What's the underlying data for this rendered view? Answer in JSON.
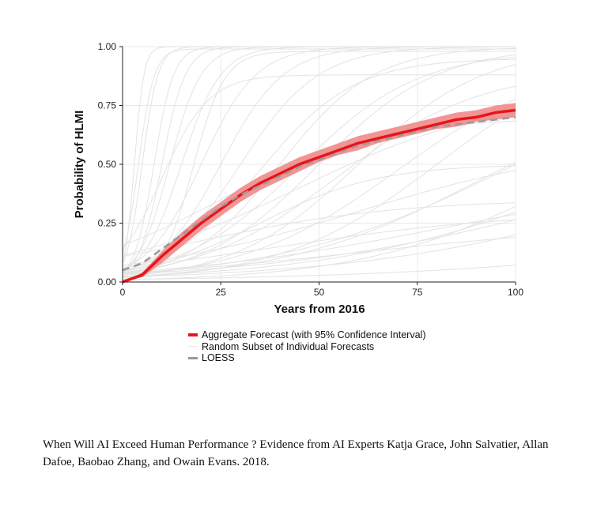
{
  "chart_data": {
    "type": "line",
    "xlabel": "Years from 2016",
    "ylabel": "Probability of HLMI",
    "xlim": [
      0,
      100
    ],
    "ylim": [
      0,
      1
    ],
    "xticks": [
      "0",
      "25",
      "50",
      "75",
      "100"
    ],
    "yticks": [
      "0.00",
      "0.25",
      "0.50",
      "0.75",
      "1.00"
    ],
    "grid": true,
    "legend_position": "bottom",
    "series": [
      {
        "name": "Aggregate Forecast (with 95% Confidence Interval)",
        "color": "#e8141a",
        "band_color": "#f08a8a",
        "x": [
          0,
          5,
          10,
          15,
          20,
          25,
          30,
          35,
          40,
          45,
          50,
          55,
          60,
          65,
          70,
          75,
          80,
          85,
          90,
          95,
          100
        ],
        "y": [
          0.0,
          0.03,
          0.11,
          0.18,
          0.25,
          0.31,
          0.37,
          0.42,
          0.46,
          0.5,
          0.53,
          0.56,
          0.59,
          0.61,
          0.63,
          0.65,
          0.67,
          0.69,
          0.7,
          0.72,
          0.73
        ],
        "lower": [
          0.0,
          0.02,
          0.08,
          0.15,
          0.22,
          0.28,
          0.34,
          0.39,
          0.43,
          0.47,
          0.51,
          0.54,
          0.56,
          0.59,
          0.61,
          0.63,
          0.65,
          0.66,
          0.68,
          0.69,
          0.7
        ],
        "upper": [
          0.0,
          0.04,
          0.13,
          0.21,
          0.28,
          0.34,
          0.4,
          0.45,
          0.49,
          0.53,
          0.56,
          0.59,
          0.62,
          0.64,
          0.66,
          0.68,
          0.7,
          0.72,
          0.73,
          0.75,
          0.76
        ]
      },
      {
        "name": "Random Subset of Individual Forecasts",
        "color": "#e3e3e3",
        "curves": [
          {
            "mid": 3,
            "scale": 1.2,
            "max": 1.0
          },
          {
            "mid": 5,
            "scale": 2,
            "max": 1.0
          },
          {
            "mid": 8,
            "scale": 2.5,
            "max": 1.0
          },
          {
            "mid": 10,
            "scale": 3,
            "max": 1.0
          },
          {
            "mid": 12,
            "scale": 4,
            "max": 1.0
          },
          {
            "mid": 15,
            "scale": 5,
            "max": 1.0
          },
          {
            "mid": 18,
            "scale": 4,
            "max": 0.98
          },
          {
            "mid": 20,
            "scale": 7,
            "max": 1.0
          },
          {
            "mid": 25,
            "scale": 8,
            "max": 1.0
          },
          {
            "mid": 30,
            "scale": 10,
            "max": 1.0
          },
          {
            "mid": 35,
            "scale": 12,
            "max": 0.95
          },
          {
            "mid": 40,
            "scale": 12,
            "max": 1.0
          },
          {
            "mid": 45,
            "scale": 15,
            "max": 0.98
          },
          {
            "mid": 50,
            "scale": 15,
            "max": 1.0
          },
          {
            "mid": 55,
            "scale": 18,
            "max": 0.9
          },
          {
            "mid": 60,
            "scale": 16,
            "max": 1.0
          },
          {
            "mid": 70,
            "scale": 20,
            "max": 0.95
          },
          {
            "mid": 80,
            "scale": 20,
            "max": 1.0
          },
          {
            "mid": 90,
            "scale": 25,
            "max": 0.85
          },
          {
            "mid": 100,
            "scale": 30,
            "max": 1.0
          },
          {
            "mid": 110,
            "scale": 25,
            "max": 0.8
          },
          {
            "mid": 130,
            "scale": 35,
            "max": 1.0
          },
          {
            "mid": 150,
            "scale": 40,
            "max": 0.9
          },
          {
            "mid": 200,
            "scale": 50,
            "max": 0.6
          },
          {
            "mid": 20,
            "scale": 25,
            "max": 0.35
          },
          {
            "mid": 40,
            "scale": 30,
            "max": 0.3
          },
          {
            "mid": 60,
            "scale": 35,
            "max": 0.25
          },
          {
            "mid": 35,
            "scale": 15,
            "max": 0.5
          },
          {
            "mid": 10,
            "scale": 6,
            "max": 0.88
          },
          {
            "mid": 25,
            "scale": 20,
            "max": 0.7
          },
          {
            "mid": 60,
            "scale": 30,
            "max": 0.6
          },
          {
            "mid": 80,
            "scale": 35,
            "max": 0.45
          },
          {
            "mid": 4,
            "scale": 2,
            "max": 0.99
          },
          {
            "mid": 45,
            "scale": 25,
            "max": 0.8
          },
          {
            "mid": 120,
            "scale": 40,
            "max": 0.7
          }
        ]
      },
      {
        "name": "LOESS",
        "color": "#9a9a9a",
        "x": [
          0,
          5,
          10,
          15,
          20,
          25,
          30,
          35,
          40,
          45,
          50,
          55,
          60,
          65,
          70,
          75,
          80,
          85,
          90,
          95,
          100
        ],
        "y": [
          0.05,
          0.08,
          0.14,
          0.2,
          0.26,
          0.32,
          0.37,
          0.41,
          0.45,
          0.49,
          0.52,
          0.55,
          0.58,
          0.6,
          0.62,
          0.64,
          0.66,
          0.67,
          0.68,
          0.69,
          0.7
        ]
      }
    ]
  },
  "caption": "When Will AI Exceed Human Performance ? Evidence from AI Experts Katja Grace, John Salvatier, Allan Dafoe, Baobao Zhang, and Owain Evans. 2018."
}
